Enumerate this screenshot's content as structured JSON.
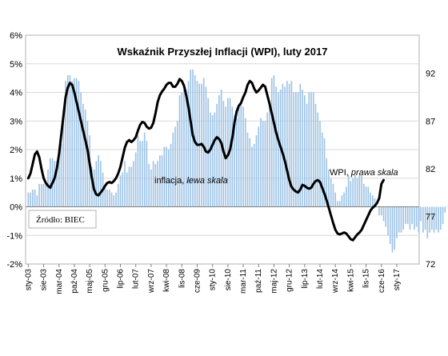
{
  "chart_data": {
    "type": "bar+line",
    "title": "Wskaźnik Przyszłej Inflacji (WPI), luty 2017",
    "source": "Źródło: BIEC",
    "left_axis": {
      "ticks": [
        "-2%",
        "-1%",
        "0%",
        "1%",
        "2%",
        "3%",
        "4%",
        "5%",
        "6%"
      ],
      "ylim": [
        -2,
        6
      ]
    },
    "right_axis": {
      "ticks": [
        "72",
        "77",
        "82",
        "87",
        "92"
      ],
      "ylim": [
        72,
        96
      ]
    },
    "x_ticks": [
      "sty-03",
      "sie-03",
      "mar-04",
      "paź-04",
      "maj-05",
      "gru-05",
      "lip-06",
      "lut-07",
      "wrz-07",
      "kwi-08",
      "lis-08",
      "cze-09",
      "sty-10",
      "sie-10",
      "mar-11",
      "paź-11",
      "maj-12",
      "gru-12",
      "lip-13",
      "lut-14",
      "wrz-14",
      "kwi-15",
      "lis-15",
      "cze-16",
      "sty-17"
    ],
    "legend": {
      "inflation_plain": "inflacja, ",
      "inflation_italic": "lewa skala",
      "wpi_plain": "WPI, ",
      "wpi_italic": "prawa skala"
    },
    "series": [
      {
        "name": "inflacja",
        "axis": "left",
        "color": "#9dc3e6",
        "start": "sty-03",
        "values": [
          0.5,
          0.5,
          0.6,
          0.6,
          0.4,
          0.8,
          0.8,
          0.8,
          0.9,
          1.3,
          1.7,
          1.7,
          1.6,
          1.6,
          1.7,
          2.2,
          3.4,
          4.4,
          4.6,
          4.6,
          4.4,
          4.5,
          4.5,
          4.4,
          4.0,
          3.6,
          3.4,
          3.0,
          2.5,
          1.4,
          1.3,
          1.6,
          1.8,
          1.6,
          1.2,
          0.7,
          0.6,
          0.6,
          0.5,
          0.4,
          0.5,
          0.8,
          1.1,
          1.2,
          1.6,
          1.2,
          1.4,
          1.4,
          1.6,
          1.9,
          2.5,
          2.3,
          2.3,
          2.6,
          2.3,
          1.5,
          1.3,
          1.6,
          1.5,
          1.6,
          1.8,
          1.8,
          2.1,
          2.1,
          2.0,
          2.2,
          2.6,
          2.8,
          3.0,
          3.9,
          4.0,
          4.1,
          4.1,
          4.4,
          4.8,
          4.8,
          4.6,
          4.4,
          4.3,
          4.3,
          4.5,
          4.2,
          3.8,
          3.3,
          3.2,
          3.3,
          3.6,
          3.9,
          4.1,
          3.7,
          3.5,
          3.8,
          3.8,
          3.5,
          3.2,
          3.1,
          3.5,
          3.6,
          3.5,
          3.1,
          2.6,
          2.4,
          2.1,
          2.2,
          2.5,
          2.8,
          3.1,
          3.0,
          3.0,
          3.3,
          3.6,
          4.5,
          4.6,
          4.2,
          4.0,
          4.1,
          4.3,
          4.2,
          4.4,
          4.3,
          4.4,
          4.0,
          4.0,
          4.0,
          4.3,
          4.1,
          3.9,
          3.6,
          4.0,
          4.0,
          4.0,
          3.6,
          3.3,
          3.0,
          2.6,
          2.4,
          1.7,
          1.3,
          1.0,
          0.8,
          0.5,
          0.2,
          0.2,
          0.4,
          0.5,
          0.7,
          1.1,
          0.9,
          1.0,
          1.1,
          1.0,
          1.1,
          1.1,
          0.8,
          0.7,
          0.7,
          0.5,
          0.4,
          0.3,
          0.0,
          -0.3,
          -0.3,
          -0.5,
          -0.7,
          -1.0,
          -1.3,
          -1.6,
          -1.5,
          -1.1,
          -0.9,
          -0.9,
          -0.8,
          -0.6,
          -0.6,
          -0.8,
          -0.6,
          -0.8,
          -0.7,
          -0.9,
          -0.5,
          -0.9,
          -0.8,
          -1.1,
          -0.9,
          -0.8,
          -0.9,
          -0.8,
          -0.9,
          -0.8,
          -0.6,
          -0.2,
          0.0,
          0.5
        ]
      },
      {
        "name": "WPI",
        "axis": "right",
        "color": "#000000",
        "start": "sty-03",
        "values": [
          81.0,
          81.5,
          82.5,
          83.5,
          83.8,
          83.2,
          82.0,
          81.0,
          80.5,
          80.2,
          80.0,
          80.5,
          81.0,
          82.0,
          83.5,
          85.5,
          87.5,
          89.5,
          90.5,
          91.0,
          90.8,
          90.0,
          89.0,
          88.0,
          87.0,
          86.0,
          85.0,
          84.0,
          82.5,
          81.0,
          79.8,
          79.3,
          79.2,
          79.5,
          79.8,
          80.2,
          80.5,
          80.6,
          80.5,
          80.7,
          81.0,
          81.5,
          82.2,
          83.2,
          84.2,
          84.8,
          85.0,
          84.8,
          85.0,
          85.3,
          86.0,
          86.6,
          86.9,
          86.8,
          86.4,
          86.2,
          86.3,
          86.8,
          87.8,
          89.0,
          89.7,
          90.1,
          90.4,
          90.8,
          91.0,
          91.0,
          90.6,
          90.6,
          90.9,
          91.4,
          91.2,
          90.7,
          89.7,
          88.5,
          87.0,
          85.5,
          84.8,
          84.5,
          84.5,
          84.6,
          84.3,
          83.8,
          83.7,
          84.0,
          84.5,
          85.0,
          85.3,
          85.1,
          84.7,
          83.8,
          83.1,
          83.4,
          84.0,
          85.2,
          86.8,
          88.0,
          88.6,
          88.9,
          89.5,
          90.0,
          90.8,
          91.2,
          91.0,
          90.4,
          90.0,
          90.2,
          90.5,
          90.8,
          90.6,
          89.7,
          88.8,
          87.8,
          86.8,
          85.8,
          85.0,
          84.3,
          83.6,
          82.8,
          81.8,
          80.8,
          80.1,
          79.8,
          79.6,
          79.5,
          79.8,
          80.3,
          80.2,
          80.0,
          79.9,
          80.0,
          80.4,
          80.7,
          80.8,
          80.6,
          80.0,
          79.4,
          78.7,
          77.9,
          77.1,
          76.3,
          75.6,
          75.2,
          75.1,
          75.2,
          75.3,
          75.2,
          74.9,
          74.6,
          74.5,
          74.8,
          75.1,
          75.3,
          75.6,
          76.1,
          76.6,
          77.1,
          77.6,
          77.9,
          78.1,
          78.4,
          78.9,
          80.4,
          80.8
        ]
      }
    ]
  }
}
